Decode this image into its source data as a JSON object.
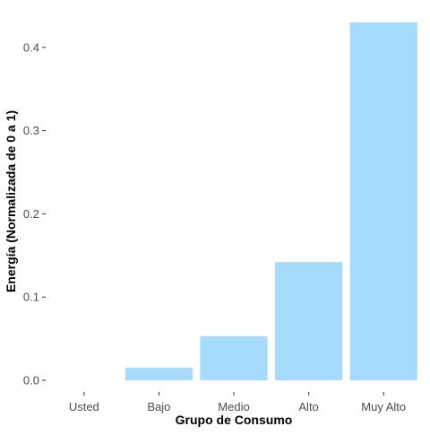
{
  "chart_data": {
    "type": "bar",
    "categories": [
      "Usted",
      "Bajo",
      "Medio",
      "Alto",
      "Muy Alto"
    ],
    "values": [
      0.0,
      0.015,
      0.053,
      0.142,
      0.43
    ],
    "xlabel": "Grupo de Consumo",
    "ylabel": "Energía (Normalizada de 0 a 1)",
    "ylim": [
      0,
      0.43
    ],
    "yticks": [
      0.0,
      0.1,
      0.2,
      0.3,
      0.4
    ],
    "ytick_labels": [
      "0.0",
      "0.1",
      "0.2",
      "0.3",
      "0.4"
    ],
    "bar_color": "#a6dbfc",
    "grid": false,
    "legend": "none"
  }
}
